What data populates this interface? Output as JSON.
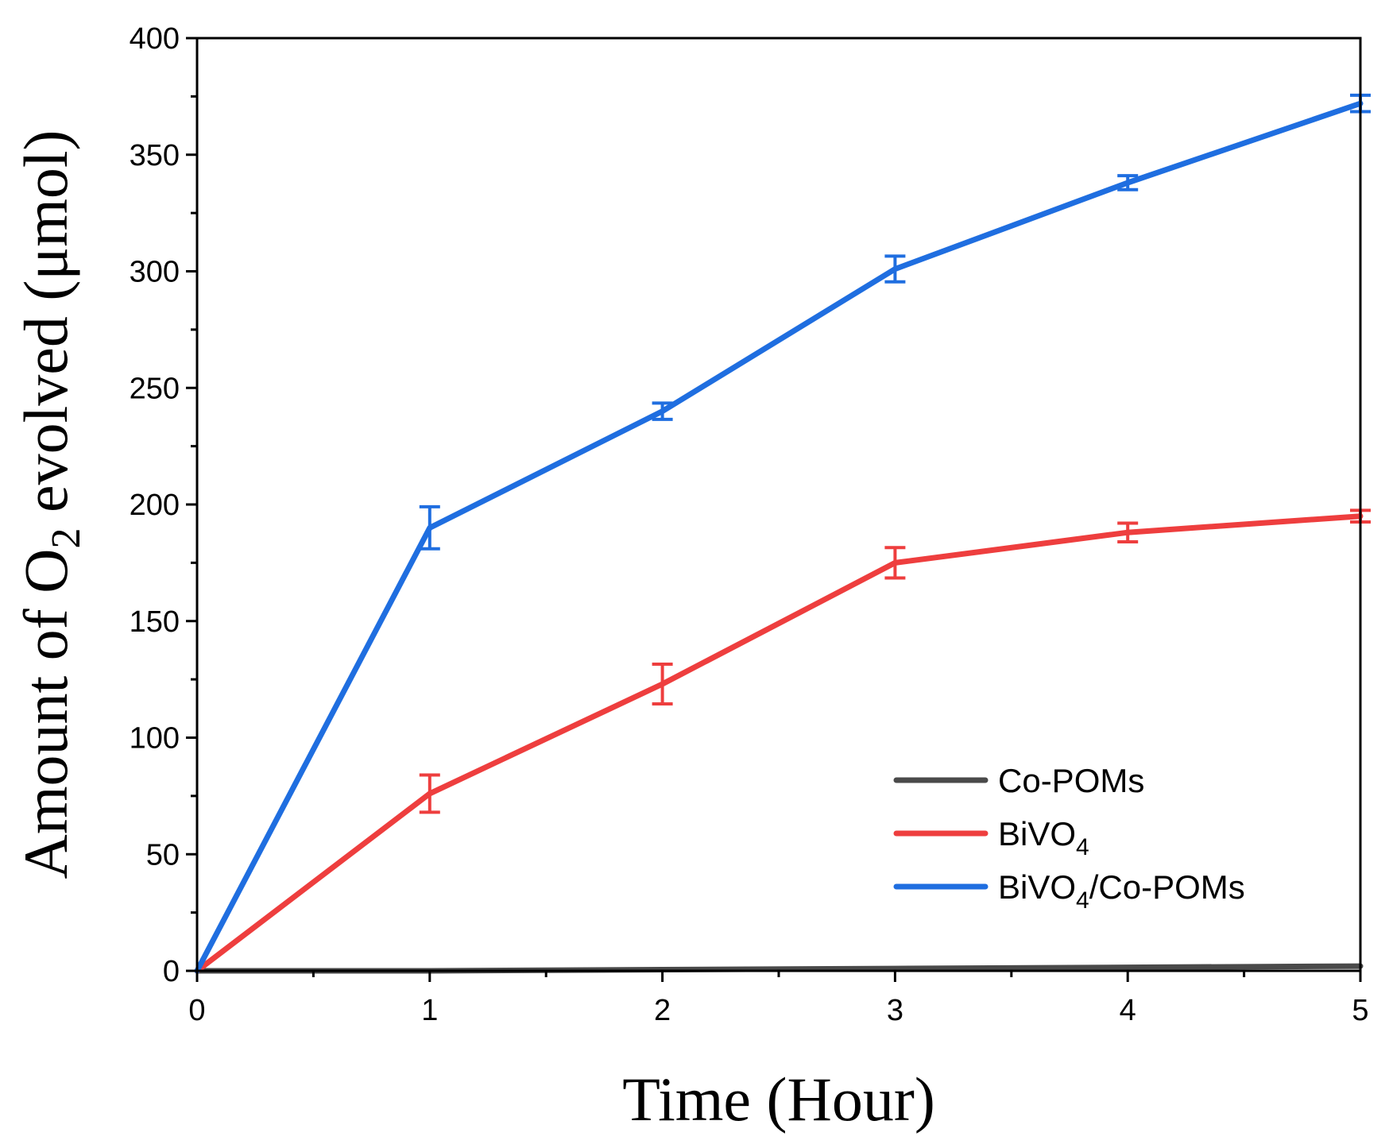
{
  "chart_data": {
    "type": "line",
    "xlabel": "Time (Hour)",
    "ylabel": {
      "pre": "Amount of O",
      "sub": "2",
      "post": " evolved (μmol)"
    },
    "xlim": [
      0,
      5
    ],
    "ylim": [
      0,
      400
    ],
    "xticks": [
      0,
      1,
      2,
      3,
      4,
      5
    ],
    "yticks": [
      0,
      50,
      100,
      150,
      200,
      250,
      300,
      350,
      400
    ],
    "x": [
      0,
      1,
      2,
      3,
      4,
      5
    ],
    "series": [
      {
        "name": "Co-POMs",
        "label": {
          "pre": "Co-POMs",
          "sub": "",
          "post": ""
        },
        "color": "#4a4a4a",
        "values": [
          0,
          0,
          0.5,
          1,
          1.5,
          2
        ],
        "errors": [
          0,
          0,
          0,
          0,
          0,
          0
        ]
      },
      {
        "name": "BiVO4",
        "label": {
          "pre": "BiVO",
          "sub": "4",
          "post": ""
        },
        "color": "#ee3e3e",
        "values": [
          0,
          76,
          123,
          175,
          188,
          195
        ],
        "errors": [
          0,
          8,
          8.5,
          6.5,
          4,
          2.5
        ]
      },
      {
        "name": "BiVO4/Co-POMs",
        "label": {
          "pre": "BiVO",
          "sub": "4",
          "post": "/Co-POMs"
        },
        "color": "#1f6ee0",
        "values": [
          0,
          190,
          240,
          301,
          338,
          372
        ],
        "errors": [
          0,
          9,
          3.5,
          5.5,
          3,
          3.5
        ]
      }
    ],
    "legend_position": "lower-right",
    "grid": false
  }
}
